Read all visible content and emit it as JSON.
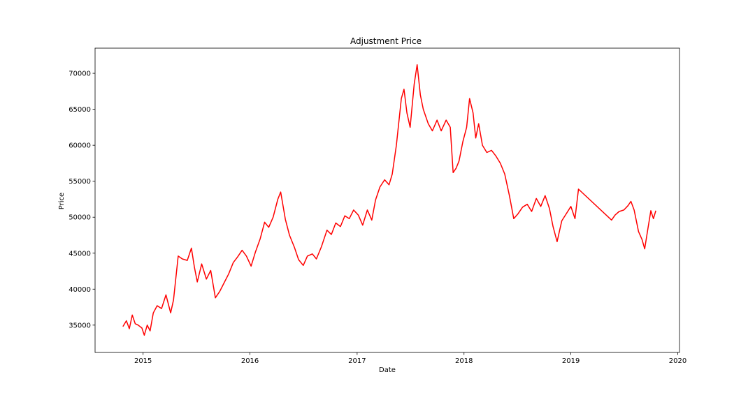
{
  "chart_data": {
    "type": "line",
    "title": "Adjustment Price",
    "xlabel": "Date",
    "ylabel": "Price",
    "x_ticks": [
      "2015",
      "2016",
      "2017",
      "2018",
      "2019",
      "2020"
    ],
    "y_ticks": [
      35000,
      40000,
      45000,
      50000,
      55000,
      60000,
      65000,
      70000
    ],
    "xlim": [
      "2014-07-21",
      "2020-01-07"
    ],
    "ylim": [
      31200,
      73500
    ],
    "grid": false,
    "legend": "none",
    "series": [
      {
        "color": "#ff0000",
        "x": [
          "2014-10-24",
          "2014-11-05",
          "2014-11-15",
          "2014-11-25",
          "2014-12-05",
          "2014-12-15",
          "2014-12-28",
          "2015-01-05",
          "2015-01-15",
          "2015-01-25",
          "2015-02-05",
          "2015-02-18",
          "2015-03-05",
          "2015-03-20",
          "2015-04-05",
          "2015-04-15",
          "2015-05-01",
          "2015-05-15",
          "2015-06-01",
          "2015-06-15",
          "2015-06-25",
          "2015-07-05",
          "2015-07-20",
          "2015-08-05",
          "2015-08-20",
          "2015-09-05",
          "2015-09-20",
          "2015-10-05",
          "2015-10-20",
          "2015-11-05",
          "2015-11-20",
          "2015-12-05",
          "2015-12-20",
          "2016-01-05",
          "2016-01-20",
          "2016-02-05",
          "2016-02-20",
          "2016-03-05",
          "2016-03-20",
          "2016-04-05",
          "2016-04-15",
          "2016-05-01",
          "2016-05-15",
          "2016-06-01",
          "2016-06-15",
          "2016-07-01",
          "2016-07-15",
          "2016-08-01",
          "2016-08-15",
          "2016-09-01",
          "2016-09-20",
          "2016-10-05",
          "2016-10-20",
          "2016-11-05",
          "2016-11-20",
          "2016-12-05",
          "2016-12-20",
          "2017-01-05",
          "2017-01-20",
          "2017-02-05",
          "2017-02-20",
          "2017-03-05",
          "2017-03-20",
          "2017-04-05",
          "2017-04-20",
          "2017-05-01",
          "2017-05-15",
          "2017-06-01",
          "2017-06-10",
          "2017-06-20",
          "2017-07-01",
          "2017-07-15",
          "2017-07-25",
          "2017-08-05",
          "2017-08-15",
          "2017-09-01",
          "2017-09-15",
          "2017-10-01",
          "2017-10-15",
          "2017-11-01",
          "2017-11-15",
          "2017-11-25",
          "2017-12-05",
          "2017-12-15",
          "2017-12-28",
          "2018-01-10",
          "2018-01-20",
          "2018-02-01",
          "2018-02-10",
          "2018-02-20",
          "2018-03-05",
          "2018-03-20",
          "2018-04-05",
          "2018-04-20",
          "2018-05-05",
          "2018-05-20",
          "2018-06-05",
          "2018-06-20",
          "2018-07-05",
          "2018-07-20",
          "2018-08-05",
          "2018-08-20",
          "2018-09-05",
          "2018-09-20",
          "2018-10-05",
          "2018-10-20",
          "2018-11-01",
          "2018-11-15",
          "2018-12-01",
          "2018-12-15",
          "2019-01-01",
          "2019-01-15",
          "2019-01-27",
          "2019-05-20",
          "2019-06-01",
          "2019-06-15",
          "2019-07-01",
          "2019-07-15",
          "2019-07-25",
          "2019-08-05",
          "2019-08-20",
          "2019-09-01",
          "2019-09-10",
          "2019-09-20",
          "2019-10-01",
          "2019-10-10",
          "2019-10-18"
        ],
        "y": [
          34800,
          35600,
          34500,
          36400,
          35200,
          35000,
          34600,
          33600,
          35000,
          34200,
          36700,
          37700,
          37300,
          39200,
          36700,
          38500,
          44600,
          44200,
          44000,
          45700,
          43100,
          41000,
          43500,
          41400,
          42600,
          38800,
          39700,
          40900,
          42100,
          43700,
          44500,
          45400,
          44600,
          43200,
          45200,
          47000,
          49300,
          48600,
          50000,
          52500,
          53500,
          49700,
          47500,
          45800,
          44100,
          43300,
          44600,
          44900,
          44200,
          45900,
          48200,
          47600,
          49200,
          48700,
          50200,
          49800,
          51000,
          50300,
          48900,
          51000,
          49600,
          52400,
          54200,
          55200,
          54500,
          56000,
          60000,
          66500,
          67800,
          64500,
          62500,
          68500,
          71200,
          67000,
          65000,
          63000,
          62000,
          63500,
          62000,
          63500,
          62500,
          56200,
          56800,
          57800,
          60500,
          62500,
          66500,
          64500,
          61000,
          63000,
          60000,
          59000,
          59300,
          58500,
          57500,
          56000,
          53000,
          49800,
          50500,
          51400,
          51800,
          50800,
          52600,
          51500,
          53000,
          51200,
          48700,
          46600,
          49500,
          50400,
          51500,
          49800,
          53900,
          49600,
          50300,
          50800,
          51000,
          51600,
          52200,
          51000,
          48000,
          46900,
          45600,
          48100,
          50900,
          49800,
          50900
        ]
      }
    ]
  }
}
